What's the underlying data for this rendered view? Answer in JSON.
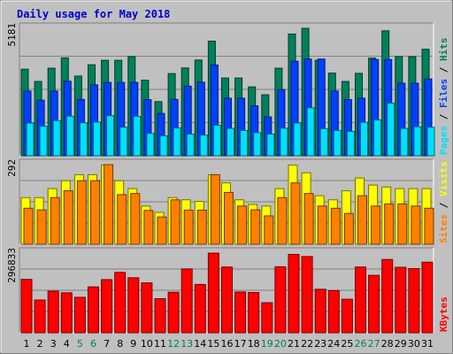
{
  "title": "Daily usage for May 2018",
  "colors": {
    "background": "#c0c0c0",
    "panel": "#c0c0c0",
    "title_text": "#0000cc",
    "hits": "#00805c",
    "files": "#0040ff",
    "pages": "#00e0ff",
    "visits": "#ffff00",
    "sites": "#ff8000",
    "kbytes": "#ff0000",
    "weekend_day": "#00805c",
    "weekday": "#000000"
  },
  "chart_data": [
    {
      "type": "bar",
      "panel": "hits_files_pages",
      "ymax_label": "5181",
      "ylim": [
        0,
        5181
      ],
      "legend": [
        "Pages",
        "Files",
        "Hits"
      ],
      "legend_separator": " / ",
      "categories": [
        "1",
        "2",
        "3",
        "4",
        "5",
        "6",
        "7",
        "8",
        "9",
        "10",
        "11",
        "12",
        "13",
        "14",
        "15",
        "16",
        "17",
        "18",
        "19",
        "20",
        "21",
        "22",
        "23",
        "24",
        "25",
        "26",
        "27",
        "28",
        "29",
        "30",
        "31"
      ],
      "series": [
        {
          "name": "Hits",
          "color": "#00805c",
          "values": [
            3520,
            3020,
            3560,
            3980,
            3240,
            3700,
            3880,
            3880,
            4030,
            3070,
            2200,
            3340,
            3570,
            3890,
            4660,
            3160,
            3160,
            2800,
            2480,
            3560,
            4950,
            5181,
            3880,
            3360,
            3020,
            3350,
            3970,
            5080,
            4030,
            4030,
            4330
          ]
        },
        {
          "name": "Files",
          "color": "#0040ff",
          "values": [
            2630,
            2260,
            2630,
            3030,
            2290,
            2880,
            2980,
            2980,
            2980,
            2280,
            1720,
            2290,
            2830,
            2990,
            3690,
            2340,
            2340,
            2030,
            1580,
            2690,
            3840,
            3930,
            3930,
            2630,
            2280,
            2340,
            3910,
            3910,
            2950,
            2950,
            3120
          ]
        },
        {
          "name": "Pages",
          "color": "#00e0ff",
          "values": [
            1330,
            1200,
            1430,
            1610,
            1340,
            1370,
            1630,
            1160,
            1600,
            910,
            810,
            1130,
            880,
            840,
            1240,
            1110,
            1030,
            940,
            880,
            1120,
            1330,
            1950,
            1100,
            1030,
            990,
            1360,
            1460,
            2140,
            1110,
            1180,
            1160
          ]
        }
      ]
    },
    {
      "type": "bar",
      "panel": "visits_sites",
      "ymax_label": "292",
      "ylim": [
        0,
        292
      ],
      "legend": [
        "Sites",
        "Visits"
      ],
      "legend_separator": " / ",
      "categories": [
        "1",
        "2",
        "3",
        "4",
        "5",
        "6",
        "7",
        "8",
        "9",
        "10",
        "11",
        "12",
        "13",
        "14",
        "15",
        "16",
        "17",
        "18",
        "19",
        "20",
        "21",
        "22",
        "23",
        "24",
        "25",
        "26",
        "27",
        "28",
        "29",
        "30",
        "31"
      ],
      "series": [
        {
          "name": "Visits",
          "color": "#ffff00",
          "values": [
            171,
            171,
            204,
            233,
            255,
            255,
            290,
            233,
            204,
            140,
            117,
            171,
            163,
            157,
            255,
            225,
            163,
            146,
            140,
            204,
            290,
            262,
            178,
            163,
            196,
            243,
            217,
            210,
            204,
            204,
            204
          ]
        },
        {
          "name": "Sites",
          "color": "#ff8000",
          "values": [
            132,
            126,
            171,
            196,
            233,
            233,
            292,
            182,
            186,
            124,
            100,
            163,
            125,
            125,
            255,
            190,
            140,
            126,
            104,
            171,
            225,
            186,
            140,
            132,
            113,
            178,
            140,
            148,
            148,
            140,
            132
          ]
        }
      ]
    },
    {
      "type": "bar",
      "panel": "kbytes",
      "ymax_label": "296833",
      "ylim": [
        0,
        296833
      ],
      "legend": [
        "KBytes"
      ],
      "categories": [
        "1",
        "2",
        "3",
        "4",
        "5",
        "6",
        "7",
        "8",
        "9",
        "10",
        "11",
        "12",
        "13",
        "14",
        "15",
        "16",
        "17",
        "18",
        "19",
        "20",
        "21",
        "22",
        "23",
        "24",
        "25",
        "26",
        "27",
        "28",
        "29",
        "30",
        "31"
      ],
      "series": [
        {
          "name": "KBytes",
          "color": "#ff0000",
          "values": [
            199000,
            122000,
            155000,
            149000,
            132000,
            171000,
            198000,
            225000,
            205000,
            186000,
            127000,
            151000,
            238000,
            180000,
            296833,
            245000,
            152000,
            150000,
            112000,
            246000,
            292000,
            284000,
            162000,
            157000,
            125000,
            245000,
            214000,
            273000,
            244000,
            239000,
            263000
          ]
        }
      ]
    }
  ],
  "weekend_days": [
    "5",
    "6",
    "12",
    "13",
    "19",
    "20",
    "26",
    "27"
  ]
}
